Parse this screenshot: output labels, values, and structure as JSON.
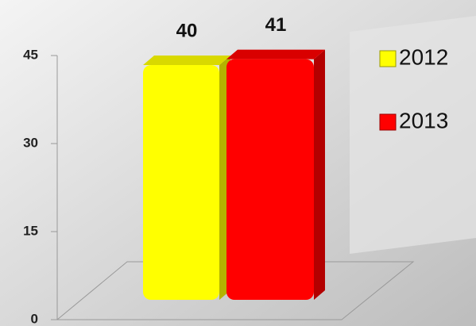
{
  "chart_data": {
    "type": "bar3d",
    "categories": [
      null
    ],
    "series": [
      {
        "name": "2012",
        "color": "#ffff00",
        "values": [
          40
        ]
      },
      {
        "name": "2013",
        "color": "#ff0000",
        "values": [
          41
        ]
      }
    ],
    "ylim": [
      0,
      45
    ],
    "yticks": [
      0,
      15,
      30,
      45
    ],
    "grid": false,
    "legend": "right"
  }
}
